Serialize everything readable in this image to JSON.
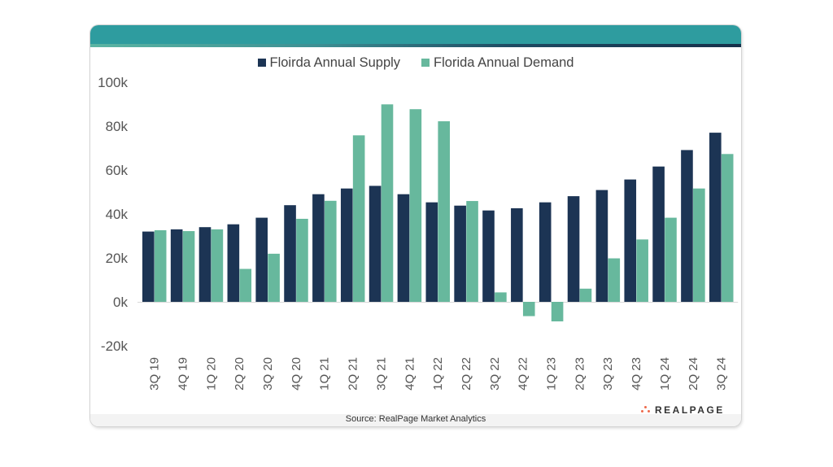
{
  "colors": {
    "supply": "#1c3454",
    "demand": "#67b89d",
    "header": "#2e9c9f",
    "logo_dot": "#ee6a4b"
  },
  "legend": {
    "supply_label": "Floirda Annual Supply",
    "demand_label": "Florida Annual Demand"
  },
  "footer": {
    "source": "Source: RealPage Market Analytics",
    "logo_text": "REALPAGE"
  },
  "chart_data": {
    "type": "bar",
    "title": "",
    "xlabel": "",
    "ylabel": "",
    "ylim": [
      -20000,
      100000
    ],
    "yticks": [
      -20000,
      0,
      20000,
      40000,
      60000,
      80000,
      100000
    ],
    "ytick_labels": [
      "-20k",
      "0k",
      "20k",
      "40k",
      "60k",
      "80k",
      "100k"
    ],
    "grid": false,
    "legend_position": "top-center",
    "categories": [
      "3Q 19",
      "4Q 19",
      "1Q 20",
      "2Q 20",
      "3Q 20",
      "4Q 20",
      "1Q 21",
      "2Q 21",
      "3Q 21",
      "4Q 21",
      "1Q 22",
      "2Q 22",
      "3Q 22",
      "4Q 22",
      "1Q 23",
      "2Q 23",
      "3Q 23",
      "4Q 23",
      "1Q 24",
      "2Q 24",
      "3Q 24"
    ],
    "series": [
      {
        "name": "Floirda Annual Supply",
        "values": [
          32000,
          33000,
          34000,
          35300,
          38300,
          44000,
          49000,
          51600,
          52800,
          49000,
          45300,
          43800,
          41600,
          42600,
          45300,
          48100,
          50900,
          55700,
          61600,
          69100,
          77000
        ]
      },
      {
        "name": "Florida Annual Demand",
        "values": [
          32600,
          32200,
          33000,
          15000,
          21900,
          37800,
          46000,
          75800,
          89900,
          87700,
          82200,
          45900,
          4300,
          -6500,
          -8900,
          6000,
          19800,
          28400,
          38300,
          51600,
          67300
        ]
      }
    ]
  }
}
